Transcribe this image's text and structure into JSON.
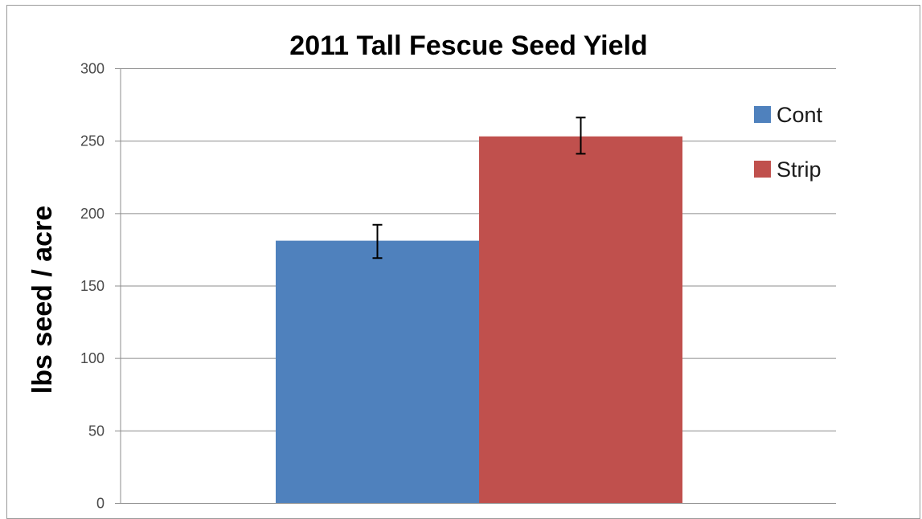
{
  "chart_data": {
    "type": "bar",
    "title": "2011 Tall Fescue Seed Yield",
    "xlabel": "",
    "ylabel": "lbs seed / acre",
    "ylim": [
      0,
      300
    ],
    "yticks": [
      "0",
      "50",
      "100",
      "150",
      "200",
      "250",
      "300"
    ],
    "ytick_values": [
      0,
      50,
      100,
      150,
      200,
      250,
      300
    ],
    "grid": true,
    "legend_position": "right",
    "series": [
      {
        "name": "Cont",
        "value": 181,
        "error_low": 169,
        "error_high": 192,
        "color": "#4f81bd"
      },
      {
        "name": "Strip",
        "value": 253,
        "error_low": 241,
        "error_high": 266,
        "color": "#c0504d"
      }
    ]
  }
}
